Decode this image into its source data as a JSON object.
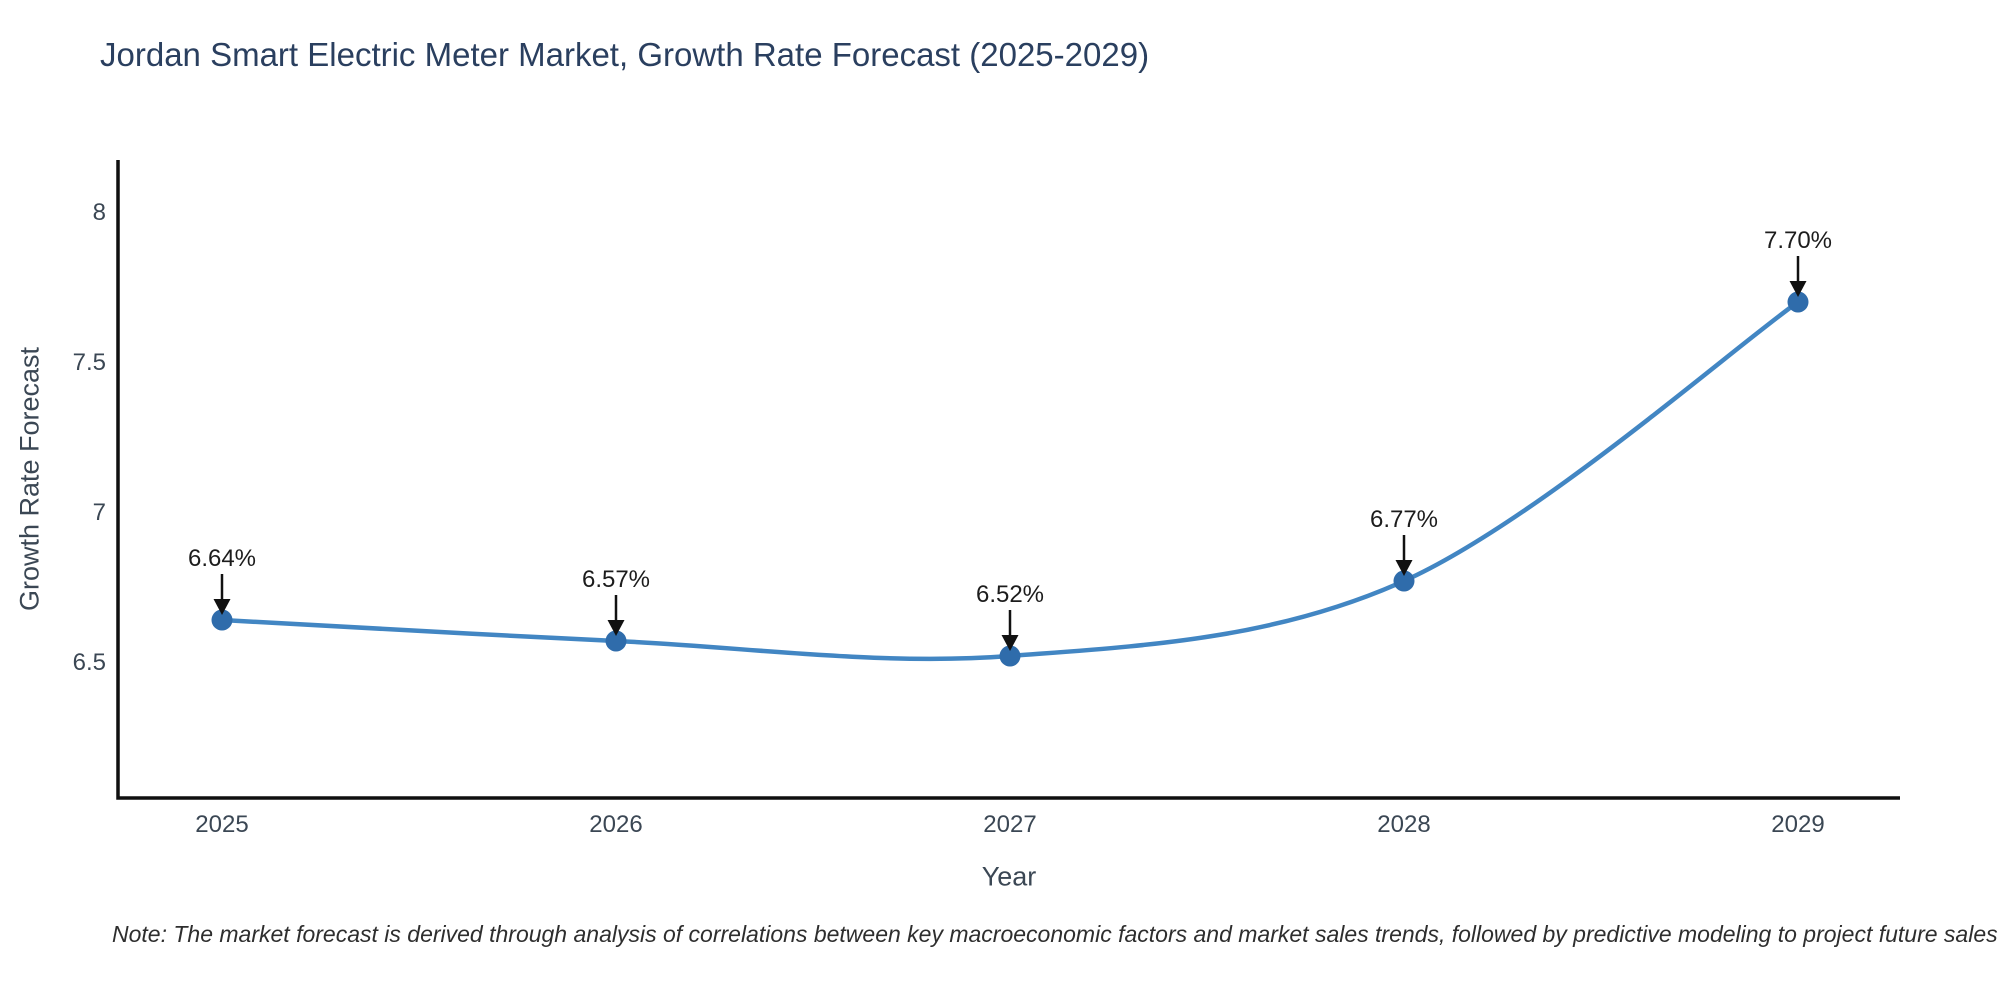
{
  "title": "Jordan Smart Electric Meter Market, Growth Rate Forecast (2025-2029)",
  "note": "Note: The market forecast is derived through analysis of correlations between key macroeconomic factors and market sales trends, followed by predictive modeling to project future sales",
  "chart_data": {
    "type": "line",
    "line_shape": "spline",
    "title": "Jordan Smart Electric Meter Market, Growth Rate Forecast (2025-2029)",
    "xlabel": "Year",
    "ylabel": "Growth Rate Forecast",
    "x": [
      2025,
      2026,
      2027,
      2028,
      2029
    ],
    "categories": [
      "2025",
      "2026",
      "2027",
      "2028",
      "2029"
    ],
    "values": [
      6.64,
      6.57,
      6.52,
      6.77,
      7.7
    ],
    "point_labels": [
      "6.64%",
      "6.57%",
      "6.52%",
      "6.77%",
      "7.70%"
    ],
    "yticks": [
      "6.5",
      "7",
      "7.5",
      "8"
    ],
    "ytick_values": [
      6.5,
      7.0,
      7.5,
      8.0
    ],
    "ylim": [
      6.05,
      8.17
    ],
    "grid": false,
    "legend": false,
    "markers": true,
    "annotations_have_arrows": true,
    "line_color": "#4286c3",
    "marker_color": "#2f6cab",
    "arrow_color": "#111111",
    "axis_color": "#0f0f0f",
    "tick_color": "#3b4754",
    "axis_title_color": "#3b4754",
    "title_color": "#2a3f5f",
    "annotation_color": "#1c1c1c",
    "note_color": "#2e2e2e",
    "background_color": "#ffffff"
  }
}
